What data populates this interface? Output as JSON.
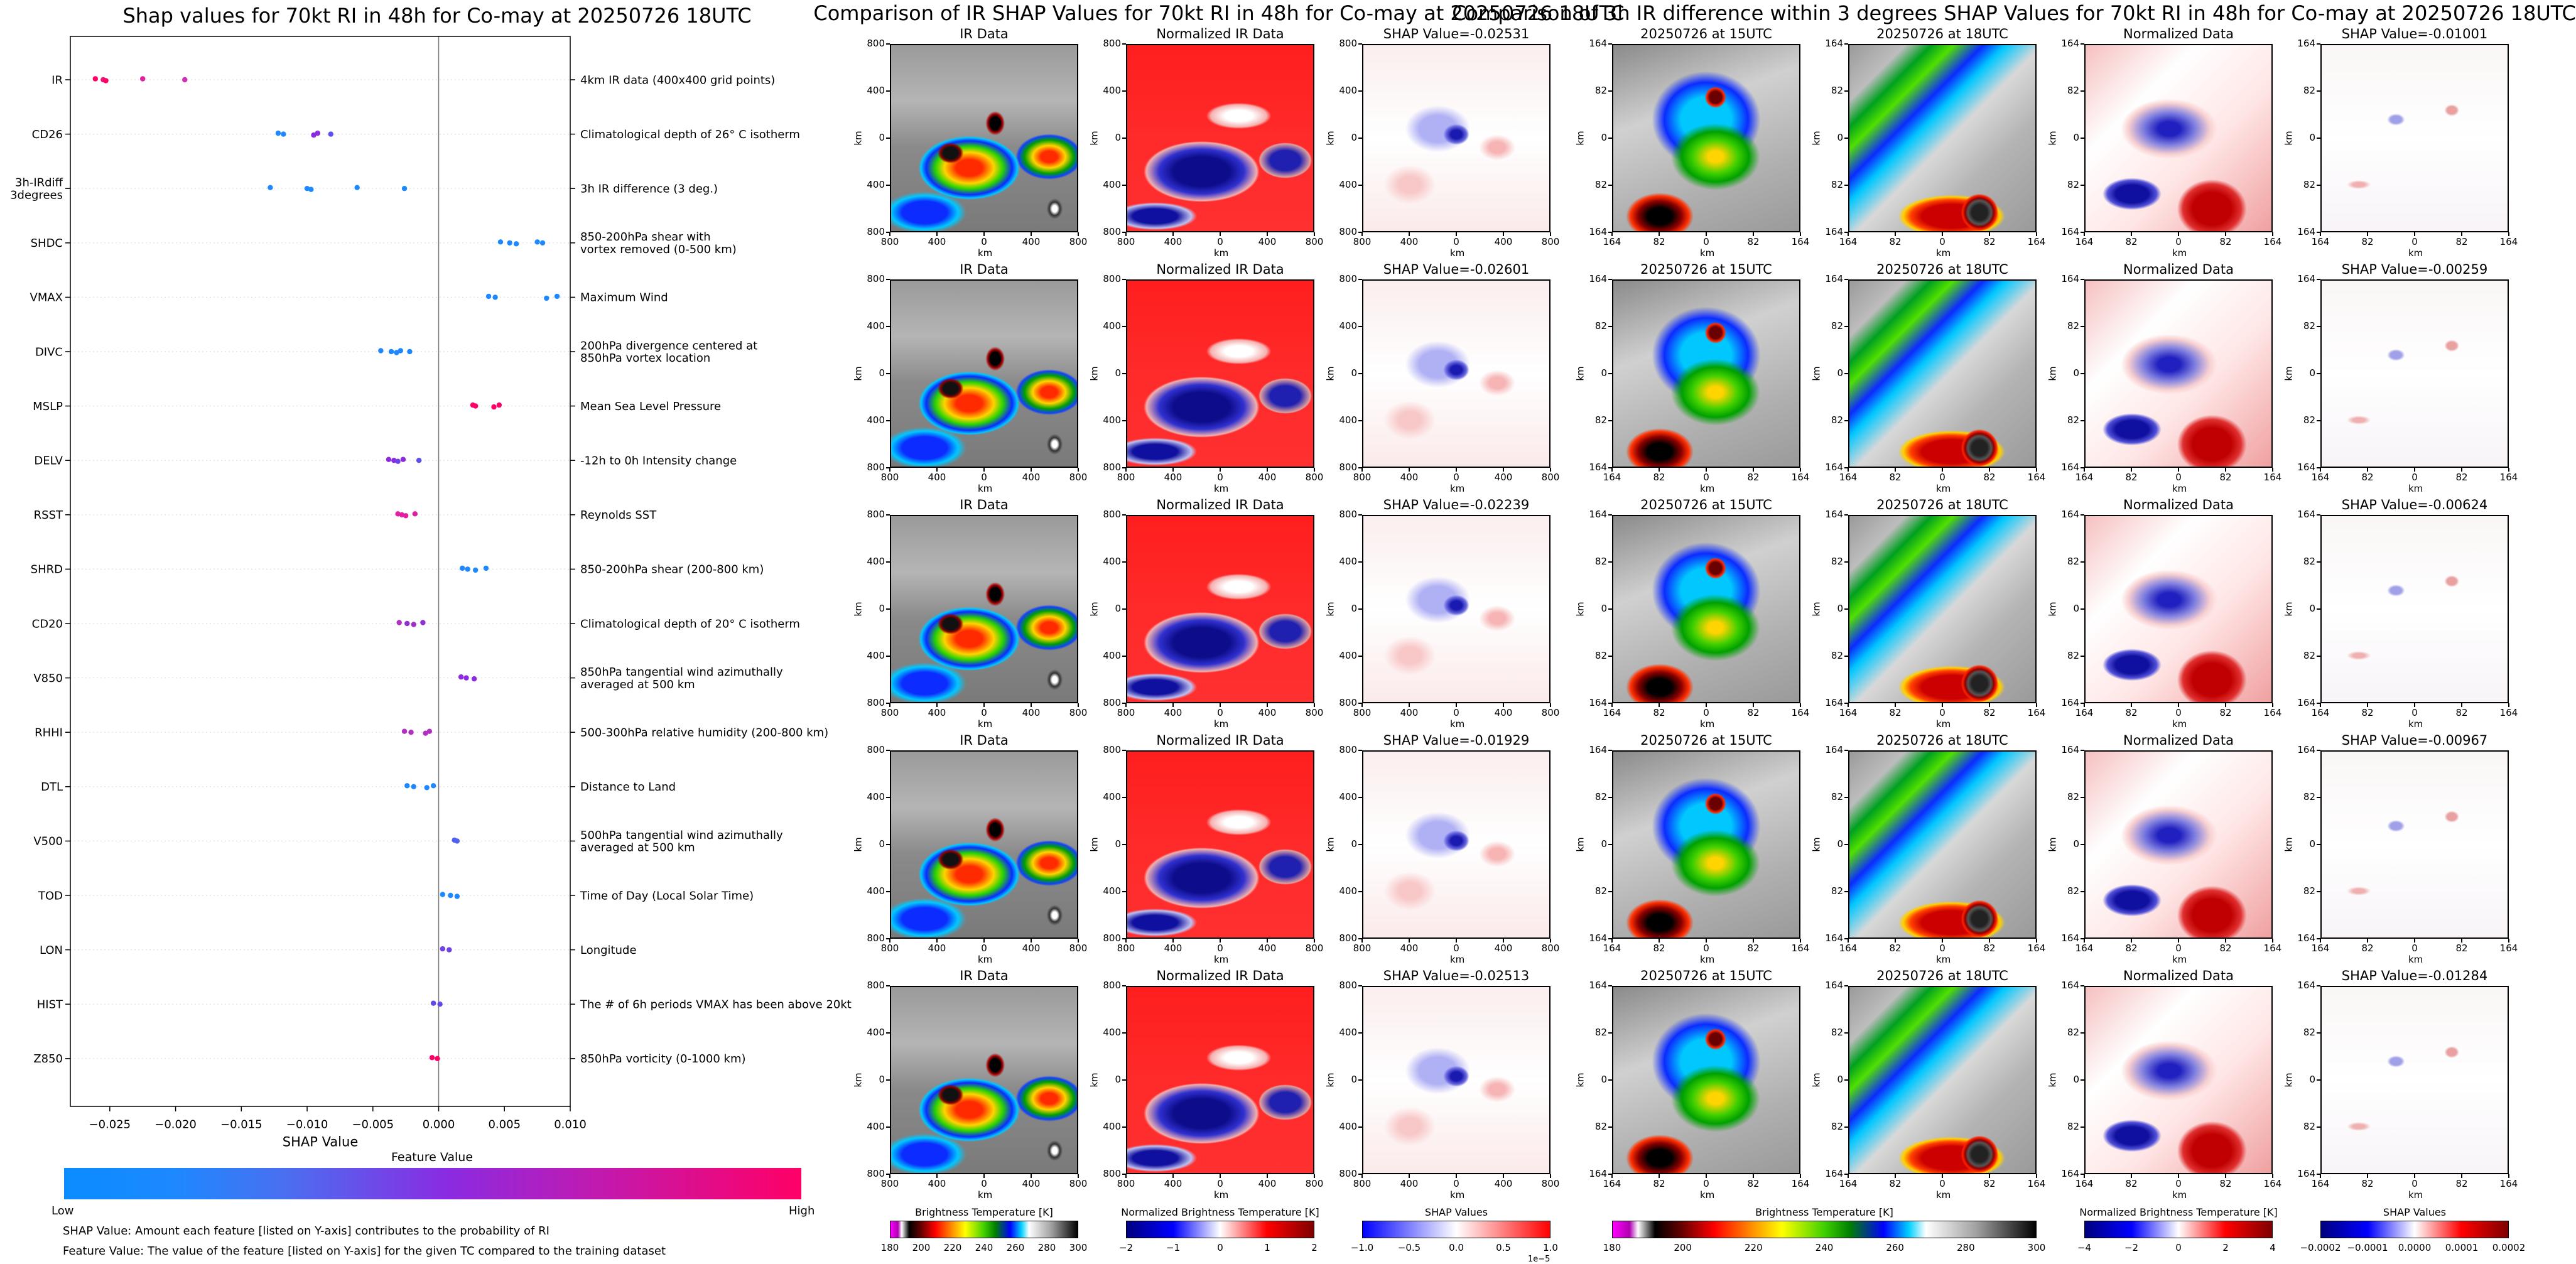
{
  "left_panel": {
    "title": "Shap values for 70kt RI in 48h for Co-may at 20250726 18UTC",
    "xlabel": "SHAP Value",
    "colorbar_title": "Feature Value",
    "colorbar_low": "Low",
    "colorbar_high": "High",
    "note1": "SHAP Value: Amount each feature [listed on Y-axis] contributes to the probability of RI",
    "note2": "Feature Value: The value of the feature [listed on Y-axis] for the given TC compared to the training dataset",
    "colors": {
      "low": "#1e88ff",
      "mid": "#8a2be2",
      "high": "#ff0066"
    }
  },
  "middle_panel": {
    "title": "Comparison of IR SHAP Values for 70kt RI in 48h for Co-may at 20250726 18UTC",
    "column_titles": [
      "IR Data",
      "Normalized IR Data"
    ],
    "shap_titles": [
      "SHAP Value=-0.02531",
      "SHAP Value=-0.02601",
      "SHAP Value=-0.02239",
      "SHAP Value=-0.01929",
      "SHAP Value=-0.02513"
    ],
    "yticks": [
      "800",
      "400",
      "0",
      "400",
      "800"
    ],
    "xticks": [
      "800",
      "400",
      "0",
      "400",
      "800"
    ],
    "axis_unit": "km",
    "cbar1_label": "Brightness Temperature [K]",
    "cbar1_ticks": [
      "180",
      "200",
      "220",
      "240",
      "260",
      "280",
      "300"
    ],
    "cbar2_label": "Normalized Brightness Temperature [K]",
    "cbar2_ticks": [
      "−2",
      "−1",
      "0",
      "1",
      "2"
    ],
    "cbar3_label": "SHAP Values",
    "cbar3_ticks": [
      "−1.0",
      "−0.5",
      "0.0",
      "0.5",
      "1.0"
    ],
    "cbar3_exp": "1e−5"
  },
  "right_panel": {
    "title": "Comparison of 3h IR difference within 3 degrees SHAP Values for 70kt RI in 48h for Co-may at 20250726 18UTC",
    "column_titles": [
      "20250726 at 15UTC",
      "20250726 at 18UTC",
      "Normalized Data"
    ],
    "shap_titles": [
      "SHAP Value=-0.01001",
      "SHAP Value=-0.00259",
      "SHAP Value=-0.00624",
      "SHAP Value=-0.00967",
      "SHAP Value=-0.01284"
    ],
    "yticks": [
      "164",
      "82",
      "0",
      "82",
      "164"
    ],
    "xticks": [
      "164",
      "82",
      "0",
      "82",
      "164"
    ],
    "axis_unit": "km",
    "cbar1_label": "Brightness Temperature [K]",
    "cbar1_ticks": [
      "180",
      "200",
      "220",
      "240",
      "260",
      "280",
      "300"
    ],
    "cbar2_label": "Normalized Brightness Temperature [K]",
    "cbar2_ticks": [
      "−4",
      "−2",
      "0",
      "2",
      "4"
    ],
    "cbar3_label": "SHAP Values",
    "cbar3_ticks": [
      "−0.0002",
      "−0.0001",
      "0.0000",
      "0.0001",
      "0.0002"
    ]
  },
  "chart_data": {
    "type": "scatter",
    "title": "Shap values for 70kt RI in 48h for Co-may at 20250726 18UTC",
    "xlabel": "SHAP Value",
    "xlim": [
      -0.028,
      0.01
    ],
    "xticks": [
      "−0.025",
      "−0.020",
      "−0.015",
      "−0.010",
      "−0.005",
      "0.000",
      "0.005",
      "0.010"
    ],
    "xtick_values": [
      -0.025,
      -0.02,
      -0.015,
      -0.01,
      -0.005,
      0.0,
      0.005,
      0.01
    ],
    "features": [
      {
        "name": "IR",
        "desc": "4km IR data (400x400 grid points)",
        "values": [
          -0.0261,
          -0.0255,
          -0.0253,
          -0.0225,
          -0.0193
        ],
        "colors": [
          "#ff0066",
          "#f0107a",
          "#ff0066",
          "#e020a0",
          "#d030b0"
        ]
      },
      {
        "name": "CD26",
        "desc": "Climatological depth of 26° C isotherm",
        "values": [
          -0.0122,
          -0.0118,
          -0.0095,
          -0.0092,
          -0.0082
        ],
        "colors": [
          "#1e88ff",
          "#1e88ff",
          "#8a2be2",
          "#8a2be2",
          "#5a50f0"
        ]
      },
      {
        "name": "3h-IRdiff\n3degrees",
        "desc": "3h IR difference (3 deg.)",
        "values": [
          -0.0128,
          -0.01,
          -0.0097,
          -0.0062,
          -0.0026
        ],
        "colors": [
          "#1e88ff",
          "#1e88ff",
          "#1e88ff",
          "#1e88ff",
          "#1e88ff"
        ]
      },
      {
        "name": "SHDC",
        "desc": "850-200hPa shear with\nvortex removed (0-500 km)",
        "values": [
          0.0047,
          0.0054,
          0.0059,
          0.0075,
          0.0079
        ],
        "colors": [
          "#1e88ff",
          "#1e88ff",
          "#1e88ff",
          "#1e88ff",
          "#1e88ff"
        ]
      },
      {
        "name": "VMAX",
        "desc": "Maximum Wind",
        "values": [
          0.0038,
          0.0043,
          0.0082,
          0.009
        ],
        "colors": [
          "#1e88ff",
          "#1e88ff",
          "#1e88ff",
          "#1e88ff"
        ]
      },
      {
        "name": "DIVC",
        "desc": "200hPa divergence centered at\n850hPa vortex location",
        "values": [
          -0.0044,
          -0.0036,
          -0.0032,
          -0.0029,
          -0.0022
        ],
        "colors": [
          "#1e88ff",
          "#1e88ff",
          "#1e88ff",
          "#1e88ff",
          "#1e88ff"
        ]
      },
      {
        "name": "MSLP",
        "desc": "Mean Sea Level Pressure",
        "values": [
          0.0026,
          0.0028,
          0.0042,
          0.0046
        ],
        "colors": [
          "#ff0066",
          "#ff0066",
          "#ff0066",
          "#ff0066"
        ]
      },
      {
        "name": "DELV",
        "desc": "-12h to 0h Intensity change",
        "values": [
          -0.0038,
          -0.0034,
          -0.0031,
          -0.0027,
          -0.0015
        ],
        "colors": [
          "#8a2be2",
          "#8a2be2",
          "#7040e8",
          "#8a2be2",
          "#5a50f0"
        ]
      },
      {
        "name": "RSST",
        "desc": "Reynolds SST",
        "values": [
          -0.0031,
          -0.0028,
          -0.0025,
          -0.0018
        ],
        "colors": [
          "#e020a0",
          "#e020a0",
          "#e020a0",
          "#e020a0"
        ]
      },
      {
        "name": "SHRD",
        "desc": "850-200hPa shear (200-800 km)",
        "values": [
          0.0018,
          0.0022,
          0.0028,
          0.0036
        ],
        "colors": [
          "#1e88ff",
          "#1e88ff",
          "#1e88ff",
          "#1e88ff"
        ]
      },
      {
        "name": "CD20",
        "desc": "Climatological depth of 20° C isotherm",
        "values": [
          -0.003,
          -0.0024,
          -0.0019,
          -0.0012
        ],
        "colors": [
          "#b030c0",
          "#9030d0",
          "#a030c8",
          "#9030d0"
        ]
      },
      {
        "name": "V850",
        "desc": "850hPa tangential wind azimuthally\naveraged at 500 km",
        "values": [
          0.0017,
          0.0021,
          0.0027
        ],
        "colors": [
          "#8a2be2",
          "#8a2be2",
          "#8a2be2"
        ]
      },
      {
        "name": "RHHI",
        "desc": "500-300hPa relative humidity (200-800 km)",
        "values": [
          -0.0026,
          -0.0021,
          -0.001,
          -0.0007
        ],
        "colors": [
          "#b030c0",
          "#b030c0",
          "#b030c0",
          "#b030c0"
        ]
      },
      {
        "name": "DTL",
        "desc": "Distance to Land",
        "values": [
          -0.0024,
          -0.0019,
          -0.0009,
          -0.0004
        ],
        "colors": [
          "#1e88ff",
          "#1e88ff",
          "#1e88ff",
          "#1e88ff"
        ]
      },
      {
        "name": "V500",
        "desc": "500hPa tangential wind azimuthally\naveraged at 500 km",
        "values": [
          0.0012,
          0.0014
        ],
        "colors": [
          "#5060f0",
          "#5060f0"
        ]
      },
      {
        "name": "TOD",
        "desc": "Time of Day (Local Solar Time)",
        "values": [
          0.0003,
          0.0009,
          0.0014
        ],
        "colors": [
          "#1e88ff",
          "#1e88ff",
          "#1e88ff"
        ]
      },
      {
        "name": "LON",
        "desc": "Longitude",
        "values": [
          0.0003,
          0.0008
        ],
        "colors": [
          "#7040e8",
          "#7040e8"
        ]
      },
      {
        "name": "HIST",
        "desc": "The # of 6h periods VMAX has been above 20kt",
        "values": [
          -0.0004,
          0.0001
        ],
        "colors": [
          "#6048e8",
          "#6048e8"
        ]
      },
      {
        "name": "Z850",
        "desc": "850hPa vorticity (0-1000 km)",
        "values": [
          -0.0005,
          -0.0001
        ],
        "colors": [
          "#ff0066",
          "#ff0066"
        ]
      }
    ]
  }
}
